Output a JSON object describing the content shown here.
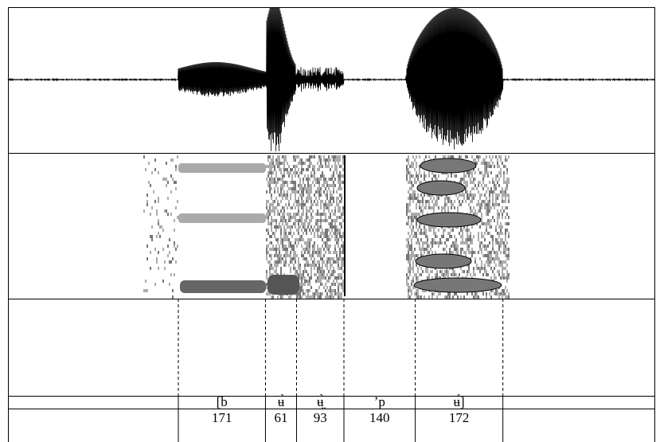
{
  "segments": [
    {
      "label": "[b",
      "duration": 171
    },
    {
      "label": "ʉ̀",
      "duration": 61
    },
    {
      "label": "ʉ̤̀",
      "duration": 93
    },
    {
      "label": "ʼp",
      "duration": 140
    },
    {
      "label": "ʉ́]",
      "duration": 172
    }
  ]
}
